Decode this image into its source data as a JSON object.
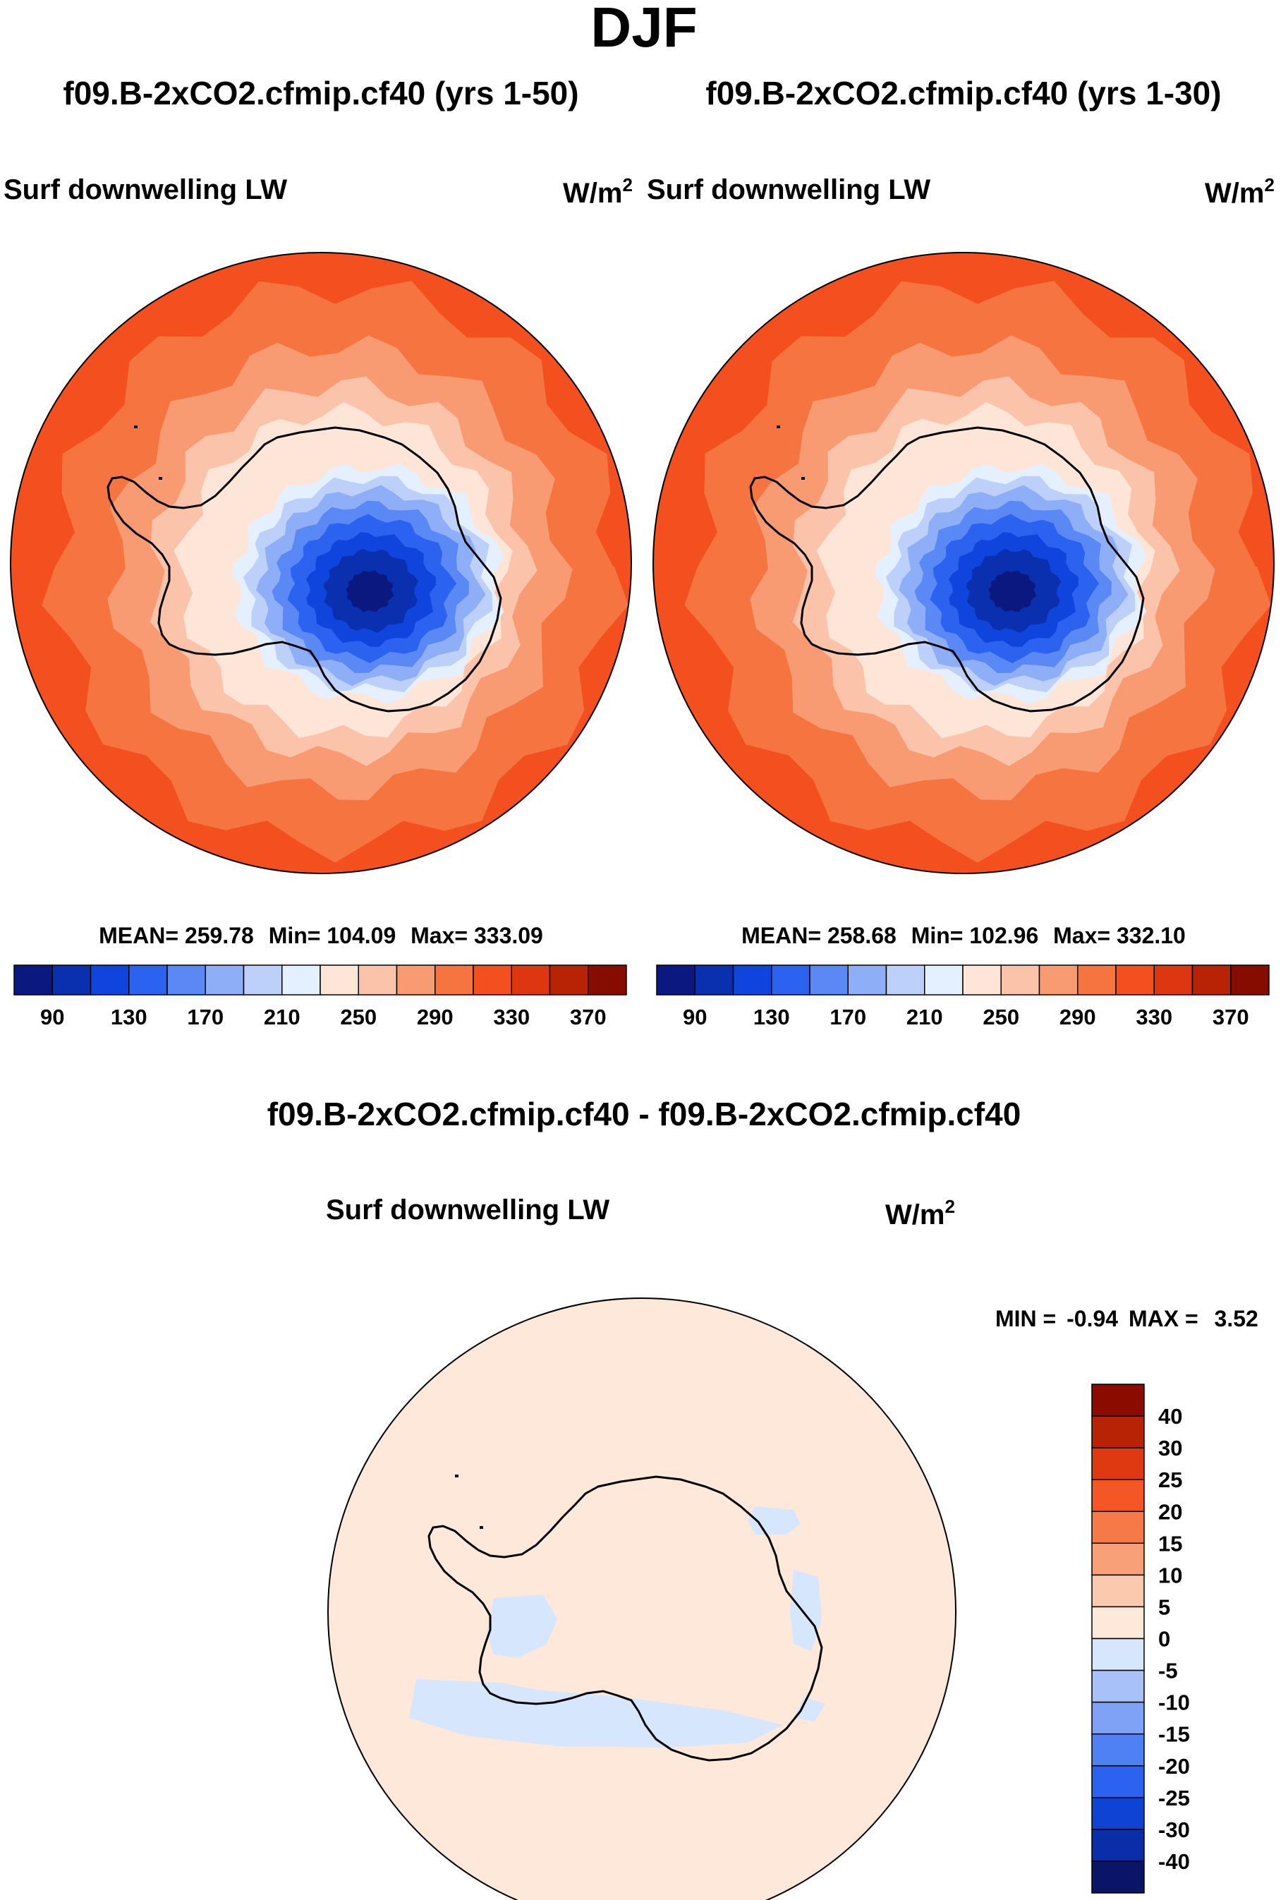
{
  "figure_title": "DJF",
  "colors": {
    "abs_levels": [
      "#0a1880",
      "#0a30b0",
      "#0f45dc",
      "#2b62f0",
      "#5a88f5",
      "#8eaef7",
      "#bcd0fa",
      "#e4efff",
      "#fde6d7",
      "#fbc4aa",
      "#f89a72",
      "#f5743f",
      "#f44f1e",
      "#dd3610",
      "#b82205",
      "#860c00"
    ],
    "diff_levels": [
      "#0a1568",
      "#0a2da8",
      "#0f43d4",
      "#2b62f0",
      "#4f80f4",
      "#7fa2f6",
      "#a8c1f9",
      "#d6e7fd",
      "#fde8d9",
      "#fbc9ae",
      "#f8a179",
      "#f67a47",
      "#f45625",
      "#dd3a12",
      "#b82306",
      "#8b0b00"
    ],
    "coastline": "#000000",
    "rim": "#000000"
  },
  "chart_data": [
    {
      "type": "heatmap",
      "projection": "south-polar-stereographic",
      "case_title": "f09.B-2xCO2.cfmip.cf40 (yrs 1-50)",
      "variable": "Surf downwelling LW",
      "units_base": "W/m",
      "units_exp": "2",
      "stats": {
        "mean_label": "MEAN=",
        "mean": "259.78",
        "min_label": "Min=",
        "min": "104.09",
        "max_label": "Max=",
        "max": "333.09"
      },
      "colorbar": {
        "levels": [
          90,
          110,
          130,
          150,
          170,
          190,
          210,
          230,
          250,
          270,
          290,
          310,
          330,
          350,
          370
        ],
        "tick_labels": [
          "90",
          "130",
          "170",
          "210",
          "250",
          "290",
          "330",
          "370"
        ]
      },
      "field_contours": [
        333,
        320,
        300,
        280,
        265,
        250,
        230,
        210,
        190,
        170,
        150,
        130,
        110
      ],
      "field_colors": [
        "#f5743f",
        "#f89a72",
        "#fbc4aa",
        "#fde6d7",
        "#e4efff",
        "#bcd0fa",
        "#8eaef7",
        "#5a88f5",
        "#2b62f0",
        "#0f45dc",
        "#0a30b0",
        "#0a1880"
      ]
    },
    {
      "type": "heatmap",
      "projection": "south-polar-stereographic",
      "case_title": "f09.B-2xCO2.cfmip.cf40 (yrs 1-30)",
      "variable": "Surf downwelling LW",
      "units_base": "W/m",
      "units_exp": "2",
      "stats": {
        "mean_label": "MEAN=",
        "mean": "258.68",
        "min_label": "Min=",
        "min": "102.96",
        "max_label": "Max=",
        "max": "332.10"
      },
      "colorbar": {
        "levels": [
          90,
          110,
          130,
          150,
          170,
          190,
          210,
          230,
          250,
          270,
          290,
          310,
          330,
          350,
          370
        ],
        "tick_labels": [
          "90",
          "130",
          "170",
          "210",
          "250",
          "290",
          "330",
          "370"
        ]
      },
      "field_contours": [
        332,
        320,
        300,
        280,
        265,
        250,
        230,
        210,
        190,
        170,
        150,
        130,
        110
      ],
      "field_colors": [
        "#f5743f",
        "#f89a72",
        "#fbc4aa",
        "#fde6d7",
        "#e4efff",
        "#bcd0fa",
        "#8eaef7",
        "#5a88f5",
        "#2b62f0",
        "#0f45dc",
        "#0a30b0",
        "#0a1880"
      ]
    },
    {
      "type": "heatmap",
      "projection": "south-polar-stereographic",
      "case_title": "f09.B-2xCO2.cfmip.cf40 - f09.B-2xCO2.cfmip.cf40",
      "variable": "Surf downwelling LW",
      "units_base": "W/m",
      "units_exp": "2",
      "stats": {
        "min_label": "MIN =",
        "min": "-0.94",
        "max_label": "MAX =",
        "max": "3.52"
      },
      "colorbar": {
        "orientation": "vertical",
        "levels": [
          -40,
          -30,
          -25,
          -20,
          -15,
          -10,
          -5,
          0,
          5,
          10,
          15,
          20,
          25,
          30,
          40
        ],
        "tick_labels": [
          "-40",
          "-30",
          "-25",
          "-20",
          "-15",
          "-10",
          "-5",
          "0",
          "5",
          "10",
          "15",
          "20",
          "25",
          "30",
          "40"
        ]
      },
      "background_range": [
        0,
        5
      ],
      "patch_range": [
        -5,
        0
      ]
    }
  ]
}
